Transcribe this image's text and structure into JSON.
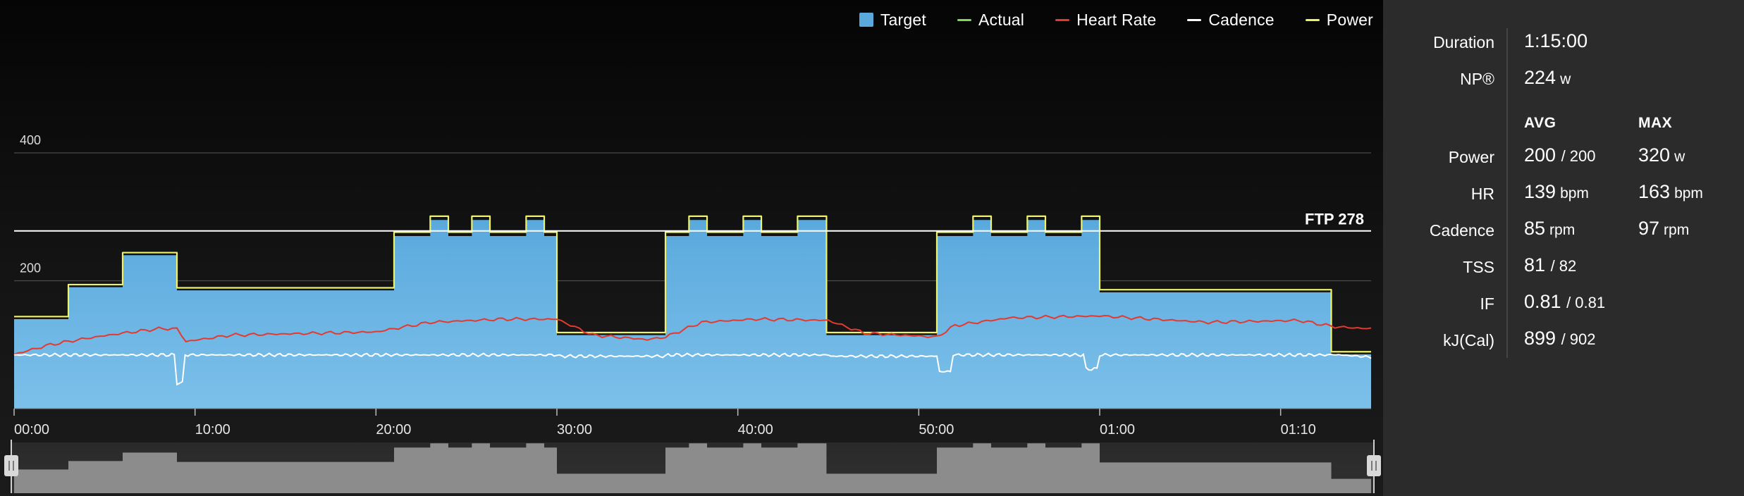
{
  "legend": {
    "items": [
      {
        "label": "Target",
        "color": "#5aa9dd",
        "kind": "box"
      },
      {
        "label": "Actual",
        "color": "#7ed957",
        "kind": "line"
      },
      {
        "label": "Heart Rate",
        "color": "#e6382c",
        "kind": "line"
      },
      {
        "label": "Cadence",
        "color": "#ffffff",
        "kind": "line"
      },
      {
        "label": "Power",
        "color": "#eef26b",
        "kind": "line"
      }
    ]
  },
  "chart_data": {
    "type": "area",
    "ylim": [
      0,
      420
    ],
    "y_ticks": [
      {
        "value": 200,
        "label": "200"
      },
      {
        "value": 400,
        "label": "400"
      }
    ],
    "ftp": {
      "value": 278,
      "label": "FTP 278"
    },
    "x_range_min": [
      0,
      75
    ],
    "x_ticks": [
      {
        "min": 0,
        "label": "00:00"
      },
      {
        "min": 10,
        "label": "10:00"
      },
      {
        "min": 20,
        "label": "20:00"
      },
      {
        "min": 30,
        "label": "30:00"
      },
      {
        "min": 40,
        "label": "40:00"
      },
      {
        "min": 50,
        "label": "50:00"
      },
      {
        "min": 60,
        "label": "01:00"
      },
      {
        "min": 70,
        "label": "01:10"
      }
    ],
    "series": [
      {
        "name": "Target",
        "color": "#5aa9dd",
        "segments": [
          [
            0,
            3,
            140
          ],
          [
            3,
            6,
            190
          ],
          [
            6,
            9,
            240
          ],
          [
            9,
            21,
            185
          ],
          [
            21,
            23,
            270
          ],
          [
            23,
            24,
            295
          ],
          [
            24,
            25.3,
            270
          ],
          [
            25.3,
            26.3,
            295
          ],
          [
            26.3,
            28.3,
            270
          ],
          [
            28.3,
            29.3,
            295
          ],
          [
            29.3,
            30,
            270
          ],
          [
            30,
            36,
            115
          ],
          [
            36,
            37.3,
            270
          ],
          [
            37.3,
            38.3,
            295
          ],
          [
            38.3,
            40.3,
            270
          ],
          [
            40.3,
            41.3,
            295
          ],
          [
            41.3,
            43.3,
            270
          ],
          [
            43.3,
            44.9,
            295
          ],
          [
            44.9,
            51,
            115
          ],
          [
            51,
            53,
            270
          ],
          [
            53,
            54,
            295
          ],
          [
            54,
            56,
            270
          ],
          [
            56,
            57,
            295
          ],
          [
            57,
            59,
            270
          ],
          [
            59,
            60,
            295
          ],
          [
            60,
            72.8,
            182
          ],
          [
            72.8,
            75,
            85
          ]
        ]
      },
      {
        "name": "Heart Rate",
        "color": "#e6382c"
      },
      {
        "name": "Cadence",
        "color": "#ffffff"
      },
      {
        "name": "Power",
        "color": "#eef26b"
      }
    ]
  },
  "stats": {
    "duration_label": "Duration",
    "duration_value": "1:15:00",
    "np_label": "NP®",
    "np_value": "224",
    "np_unit": "w",
    "avg_header": "AVG",
    "max_header": "MAX",
    "rows": [
      {
        "label": "Power",
        "avg": "200",
        "avg_sub": "/ 200",
        "max": "320",
        "unit": "w"
      },
      {
        "label": "HR",
        "avg": "139",
        "avg_sub": "bpm",
        "max": "163",
        "unit": "bpm"
      },
      {
        "label": "Cadence",
        "avg": "85",
        "avg_sub": "rpm",
        "max": "97",
        "unit": "rpm"
      },
      {
        "label": "TSS",
        "avg": "81",
        "avg_sub": "/ 82"
      },
      {
        "label": "IF",
        "avg": "0.81",
        "avg_sub": "/ 0.81"
      },
      {
        "label": "kJ(Cal)",
        "avg": "899",
        "avg_sub": "/ 902"
      }
    ]
  },
  "navigator": {
    "left_handle_icon": "pause-handle-icon",
    "right_handle_icon": "pause-handle-icon"
  }
}
